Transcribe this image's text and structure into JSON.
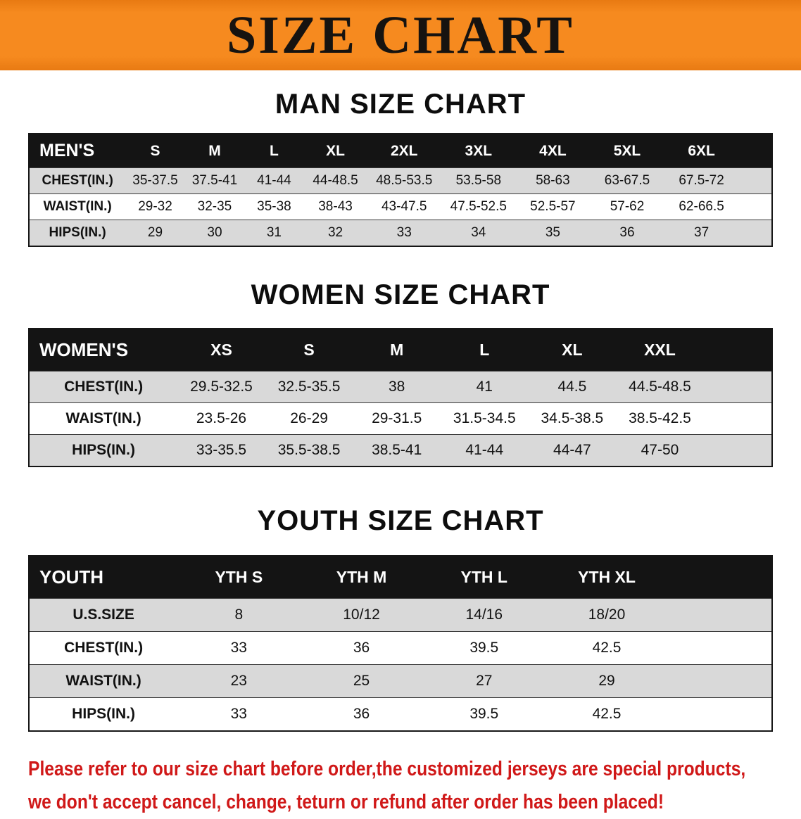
{
  "banner": {
    "title": "SIZE CHART"
  },
  "sections": [
    {
      "heading": "MAN SIZE CHART",
      "table": {
        "header": [
          "MEN'S",
          "S",
          "M",
          "L",
          "XL",
          "2XL",
          "3XL",
          "4XL",
          "5XL",
          "6XL"
        ],
        "rows": [
          [
            "CHEST(IN.)",
            "35-37.5",
            "37.5-41",
            "41-44",
            "44-48.5",
            "48.5-53.5",
            "53.5-58",
            "58-63",
            "63-67.5",
            "67.5-72"
          ],
          [
            "WAIST(IN.)",
            "29-32",
            "32-35",
            "35-38",
            "38-43",
            "43-47.5",
            "47.5-52.5",
            "52.5-57",
            "57-62",
            "62-66.5"
          ],
          [
            "HIPS(IN.)",
            "29",
            "30",
            "31",
            "32",
            "33",
            "34",
            "35",
            "36",
            "37"
          ]
        ]
      }
    },
    {
      "heading": "WOMEN SIZE CHART",
      "table": {
        "header": [
          "WOMEN'S",
          "XS",
          "S",
          "M",
          "L",
          "XL",
          "XXL"
        ],
        "rows": [
          [
            "CHEST(IN.)",
            "29.5-32.5",
            "32.5-35.5",
            "38",
            "41",
            "44.5",
            "44.5-48.5"
          ],
          [
            "WAIST(IN.)",
            "23.5-26",
            "26-29",
            "29-31.5",
            "31.5-34.5",
            "34.5-38.5",
            "38.5-42.5"
          ],
          [
            "HIPS(IN.)",
            "33-35.5",
            "35.5-38.5",
            "38.5-41",
            "41-44",
            "44-47",
            "47-50"
          ]
        ]
      }
    },
    {
      "heading": "YOUTH SIZE CHART",
      "table": {
        "header": [
          "YOUTH",
          "YTH S",
          "YTH M",
          "YTH L",
          "YTH XL"
        ],
        "rows": [
          [
            "U.S.SIZE",
            "8",
            "10/12",
            "14/16",
            "18/20"
          ],
          [
            "CHEST(IN.)",
            "33",
            "36",
            "39.5",
            "42.5"
          ],
          [
            "WAIST(IN.)",
            "23",
            "25",
            "27",
            "29"
          ],
          [
            "HIPS(IN.)",
            "33",
            "36",
            "39.5",
            "42.5"
          ]
        ]
      }
    }
  ],
  "disclaimer": {
    "line1": "Please refer to our size chart before order,the customized jerseys are special products,",
    "line2": "we don't accept cancel, change, teturn or refund after order has been placed!"
  },
  "colors": {
    "banner_bg": "#f68a1f",
    "banner_text": "#161310",
    "table_header_bg": "#141414",
    "table_header_text": "#ffffff",
    "row_alt_bg": "#d9d9d9",
    "disclaimer_text": "#d01818"
  }
}
